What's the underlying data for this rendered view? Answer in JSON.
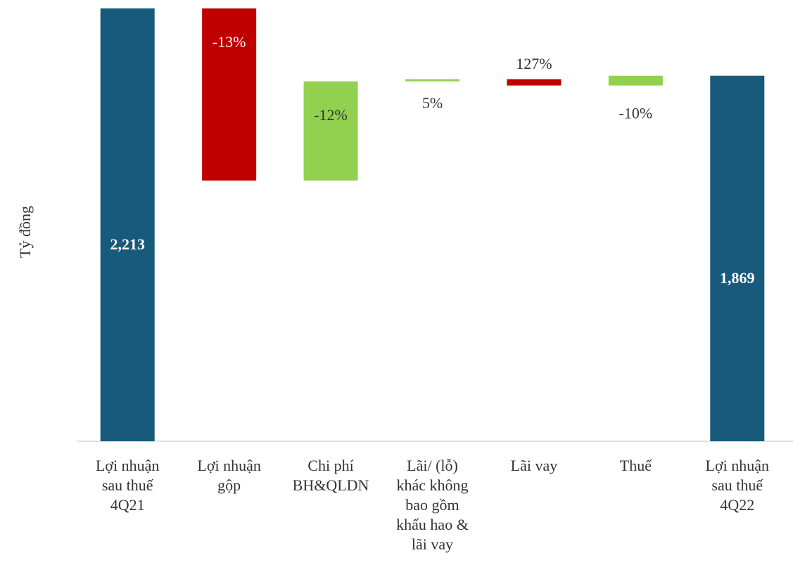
{
  "chart_data": {
    "type": "waterfall",
    "y_label": "Tỷ đồng",
    "categories": [
      "Lợi nhuận\nsau thuế\n4Q21",
      "Lợi nhuận\ngộp",
      "Chi phí\nBH&QLDN",
      "Lãi/ (lỗ)\nkhác không\nbao gồm\nkhấu hao &\nlãi vay",
      "Lãi vay",
      "Thuế",
      "Lợi nhuận\nsau thuế\n4Q22"
    ],
    "values": [
      2213,
      -880,
      507,
      11,
      -32,
      50,
      1869
    ],
    "value_labels": [
      "2,213",
      null,
      null,
      null,
      null,
      null,
      "1,869"
    ],
    "annotations": [
      "-13%",
      "-12%",
      "5%",
      "127%",
      "-10%"
    ],
    "totals": [
      0,
      6
    ],
    "colors": {
      "total": "#175a7b",
      "increase": "#92d050",
      "decrease": "#c00000"
    },
    "ylim": [
      0,
      2213
    ]
  }
}
